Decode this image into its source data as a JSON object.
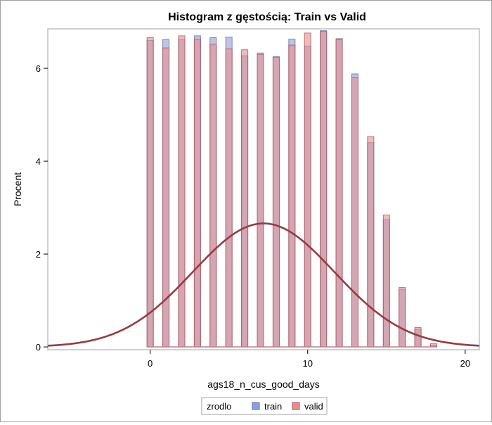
{
  "chart_data": {
    "type": "bar",
    "title": "Histogram z gęstością: Train vs Valid",
    "xlabel": "ags18_n_cus_good_days",
    "ylabel": "Procent",
    "xlim": [
      -6.5,
      20.9
    ],
    "ylim": [
      -0.06,
      6.85
    ],
    "x_ticks": [
      0,
      10,
      20
    ],
    "y_ticks": [
      0,
      2,
      4,
      6
    ],
    "grid": false,
    "legend": {
      "position": "bottom",
      "title": "zrodlo",
      "entries": [
        "train",
        "valid"
      ]
    },
    "colors": {
      "train_fill": "#8fa0d6",
      "train_stroke": "#5d6fb0",
      "valid_fill": "#e48f8f",
      "valid_stroke": "#b65555",
      "overlap": "#c08090",
      "curve_train": "#8a3f46",
      "curve_valid": "#9e3a3a"
    },
    "x": [
      0,
      1,
      2,
      3,
      4,
      5,
      6,
      7,
      8,
      9,
      10,
      11,
      12,
      13,
      14,
      15,
      16,
      17,
      18
    ],
    "series": [
      {
        "name": "train",
        "values": [
          6.6,
          6.62,
          6.62,
          6.7,
          6.66,
          6.67,
          6.27,
          6.33,
          6.25,
          6.63,
          6.48,
          6.81,
          6.64,
          5.88,
          4.4,
          2.74,
          1.24,
          0.38,
          0.04
        ]
      },
      {
        "name": "valid",
        "values": [
          6.66,
          6.44,
          6.7,
          6.63,
          6.52,
          6.42,
          6.4,
          6.3,
          6.24,
          6.5,
          6.76,
          6.8,
          6.62,
          5.8,
          4.53,
          2.84,
          1.28,
          0.42,
          0.07
        ]
      }
    ],
    "density": {
      "type": "normal",
      "mean": 7.2,
      "sd": 4.5,
      "scale": 30,
      "x_range": [
        -6.5,
        20.9
      ]
    }
  }
}
